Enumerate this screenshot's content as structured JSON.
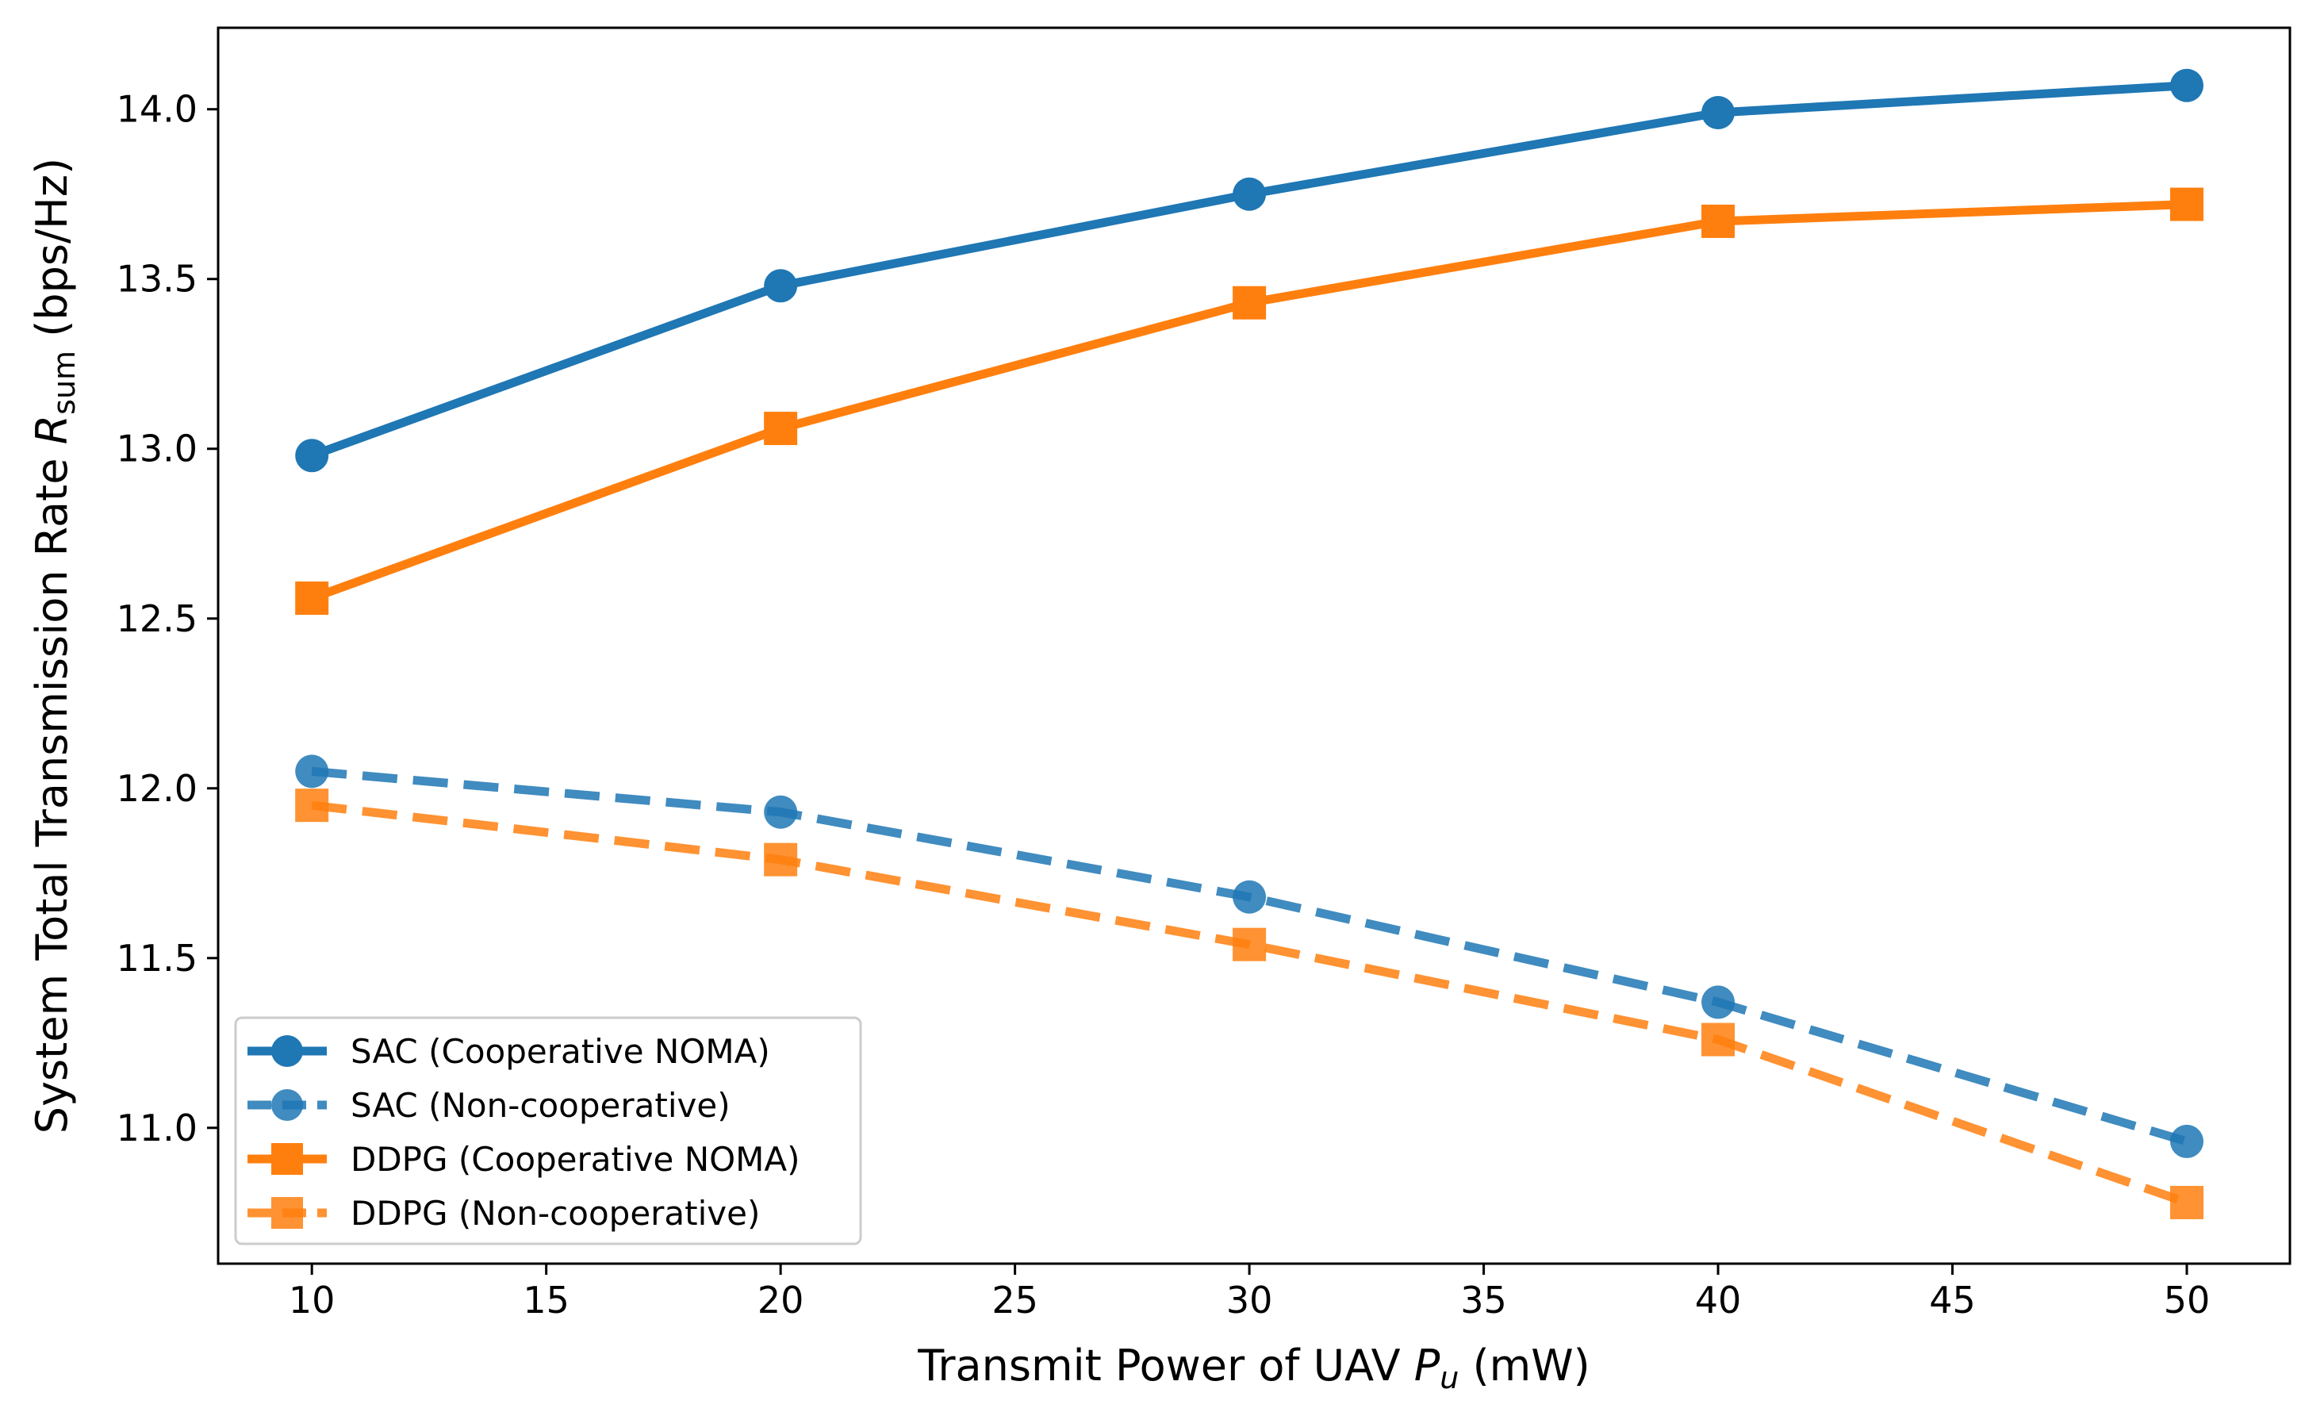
{
  "chart_data": {
    "type": "line",
    "title": "",
    "xlabel": "Transmit Power of UAV",
    "xlabel_symbol": "P",
    "xlabel_subscript": "u",
    "xlabel_unit": "(mW)",
    "ylabel": "System Total Transmission Rate",
    "ylabel_symbol": "R",
    "ylabel_subscript": "sum",
    "ylabel_unit": "(bps/Hz)",
    "xlim": [
      8,
      52.2
    ],
    "ylim": [
      10.6,
      14.24
    ],
    "xticks": [
      10,
      15,
      20,
      25,
      30,
      35,
      40,
      45,
      50
    ],
    "xtick_labels": [
      "10",
      "15",
      "20",
      "25",
      "30",
      "35",
      "40",
      "45",
      "50"
    ],
    "yticks": [
      11.0,
      11.5,
      12.0,
      12.5,
      13.0,
      13.5,
      14.0
    ],
    "ytick_labels": [
      "11.0",
      "11.5",
      "12.0",
      "12.5",
      "13.0",
      "13.5",
      "14.0"
    ],
    "grid": false,
    "legend_position": "bottom-left",
    "x": [
      10,
      20,
      30,
      40,
      50
    ],
    "series": [
      {
        "name": "SAC (Cooperative NOMA)",
        "values": [
          12.98,
          13.48,
          13.75,
          13.99,
          14.07
        ],
        "color": "#1f77b4",
        "linestyle": "solid",
        "marker": "circle"
      },
      {
        "name": "SAC (Non-cooperative)",
        "values": [
          12.05,
          11.93,
          11.68,
          11.37,
          10.96
        ],
        "color": "#1f77b4",
        "linestyle": "dashed",
        "marker": "circle"
      },
      {
        "name": "DDPG (Cooperative NOMA)",
        "values": [
          12.56,
          13.06,
          13.43,
          13.67,
          13.72
        ],
        "color": "#ff7f0e",
        "linestyle": "solid",
        "marker": "square"
      },
      {
        "name": "DDPG (Non-cooperative)",
        "values": [
          11.95,
          11.79,
          11.54,
          11.26,
          10.78
        ],
        "color": "#ff7f0e",
        "linestyle": "dashed",
        "marker": "square"
      }
    ]
  }
}
